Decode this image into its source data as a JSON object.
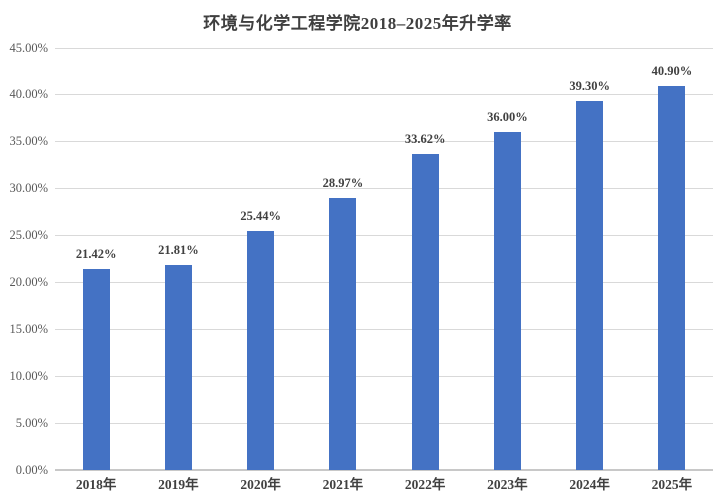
{
  "chart_data": {
    "type": "bar",
    "title": "环境与化学工程学院2018–2025年升学率",
    "categories": [
      "2018年",
      "2019年",
      "2020年",
      "2021年",
      "2022年",
      "2023年",
      "2024年",
      "2025年"
    ],
    "values": [
      21.42,
      21.81,
      25.44,
      28.97,
      33.62,
      36.0,
      39.3,
      40.9
    ],
    "data_labels": [
      "21.42%",
      "21.81%",
      "25.44%",
      "28.97%",
      "33.62%",
      "36.00%",
      "39.30%",
      "40.90%"
    ],
    "y_tick_values": [
      0,
      5,
      10,
      15,
      20,
      25,
      30,
      35,
      40,
      45
    ],
    "y_tick_labels": [
      "0.00%",
      "5.00%",
      "10.00%",
      "15.00%",
      "20.00%",
      "25.00%",
      "30.00%",
      "35.00%",
      "40.00%",
      "45.00%"
    ],
    "ylim": [
      0,
      45
    ],
    "xlabel": "",
    "ylabel": "",
    "grid": true,
    "legend": false,
    "colors": {
      "bar": "#4472C4",
      "gridline": "#D9D9D9",
      "axis_line": "#C8C8C8",
      "title_text": "#3F3F3F",
      "tick_text": "#595959",
      "data_label_text": "#404040"
    }
  }
}
